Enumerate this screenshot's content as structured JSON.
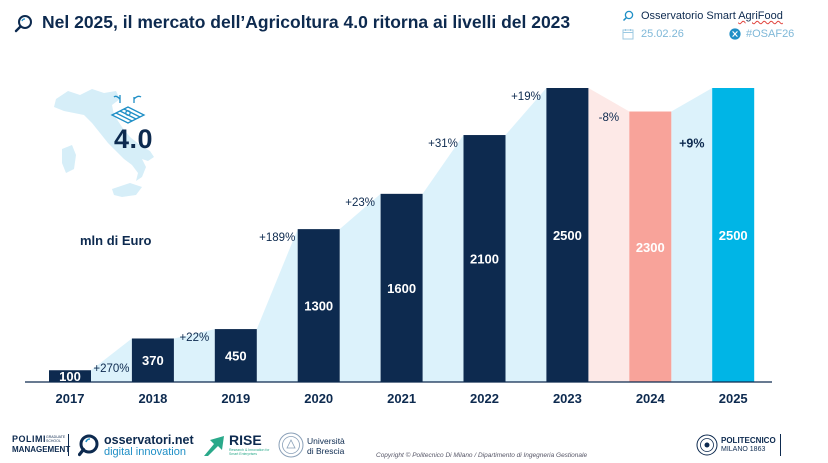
{
  "header": {
    "title": "Nel 2025, il mercato dell’Agricoltura 4.0 ritorna ai livelli del 2023",
    "source": "Osservatorio Smart AgriFood",
    "source_part1": "Osservatorio Smart ",
    "source_part2": "AgriFood",
    "date": "25.02.26",
    "hashtag": "#OSAF26"
  },
  "side": {
    "big_label": "4.0",
    "unit": "mln di Euro"
  },
  "chart_data": {
    "type": "bar",
    "categories": [
      "2017",
      "2018",
      "2019",
      "2020",
      "2021",
      "2022",
      "2023",
      "2024",
      "2025"
    ],
    "values": [
      100,
      370,
      450,
      1300,
      1600,
      2100,
      2500,
      2300,
      2500
    ],
    "value_labels": [
      "100",
      "370",
      "450",
      "1300",
      "1600",
      "2100",
      "2500",
      "2300",
      "2500"
    ],
    "growth_labels": [
      "+270%",
      "+22%",
      "+189%",
      "+23%",
      "+31%",
      "+19%",
      "-8%",
      "+9%"
    ],
    "bar_colors": [
      "#0d2a4f",
      "#0d2a4f",
      "#0d2a4f",
      "#0d2a4f",
      "#0d2a4f",
      "#0d2a4f",
      "#0d2a4f",
      "#f8a39a",
      "#00b5e6"
    ],
    "area_color": "#dcf2fb",
    "area_color_decline": "#fde9e7",
    "ylim": [
      0,
      2500
    ],
    "xlabel": "",
    "ylabel": ""
  },
  "footer": {
    "polimi_line1": "POLIMI",
    "polimi_line2": "MANAGEMENT",
    "polimi_small": "GRADUATE SCHOOL",
    "osservatori_line1": "osservatori.net",
    "osservatori_line2": "digital innovation",
    "rise": "RISE",
    "rise_sub": "Research & Innovation for Smart Enterprises",
    "brescia_line1": "Università",
    "brescia_line2": "di Brescia",
    "copyright": "Copyright © Politecnico Di Milano / Dipartimento di Ingegneria Gestionale",
    "politecnico_line1": "POLITECNICO",
    "politecnico_line2": "MILANO 1863"
  },
  "colors": {
    "navy": "#0d2a4f",
    "accent": "#1f8fc6"
  },
  "icons": [
    "search-icon",
    "calendar-icon",
    "x-logo-icon",
    "italy-map-icon"
  ]
}
